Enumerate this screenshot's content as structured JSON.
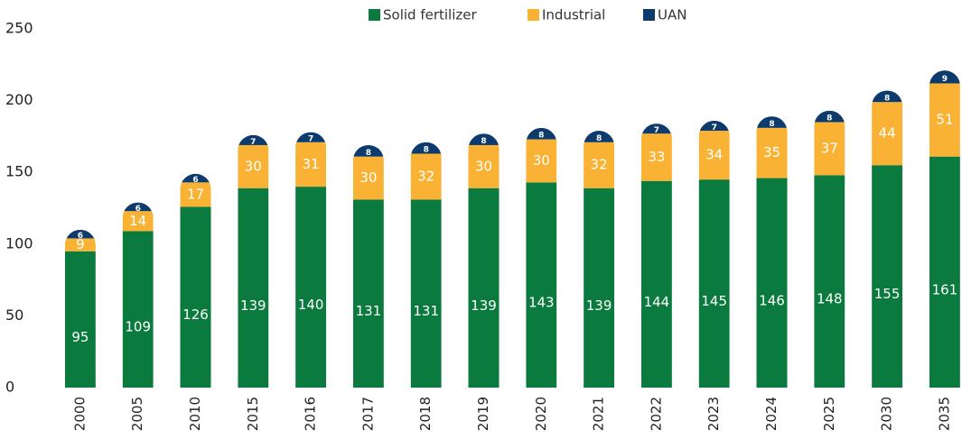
{
  "chart_data": {
    "type": "stacked_bar",
    "categories": [
      "2000",
      "2005",
      "2010",
      "2015",
      "2016",
      "2017",
      "2018",
      "2019",
      "2020",
      "2021",
      "2022",
      "2023",
      "2024",
      "2025",
      "2030",
      "2035"
    ],
    "series": [
      {
        "name": "Solid fertilizer",
        "color": "#0b7a3e",
        "values": [
          95,
          109,
          126,
          139,
          140,
          131,
          131,
          139,
          143,
          139,
          144,
          145,
          146,
          148,
          155,
          161
        ]
      },
      {
        "name": "Industrial",
        "color": "#f9b233",
        "values": [
          9,
          14,
          17,
          30,
          31,
          30,
          32,
          30,
          30,
          32,
          33,
          34,
          35,
          37,
          44,
          51
        ]
      },
      {
        "name": "UAN",
        "color": "#0d3b6e",
        "values": [
          6,
          6,
          6,
          7,
          7,
          8,
          8,
          8,
          8,
          8,
          7,
          7,
          8,
          8,
          8,
          9
        ]
      }
    ],
    "ylim": [
      0,
      250
    ],
    "yticks": [
      0,
      50,
      100,
      150,
      200,
      250
    ],
    "legend": "top"
  }
}
